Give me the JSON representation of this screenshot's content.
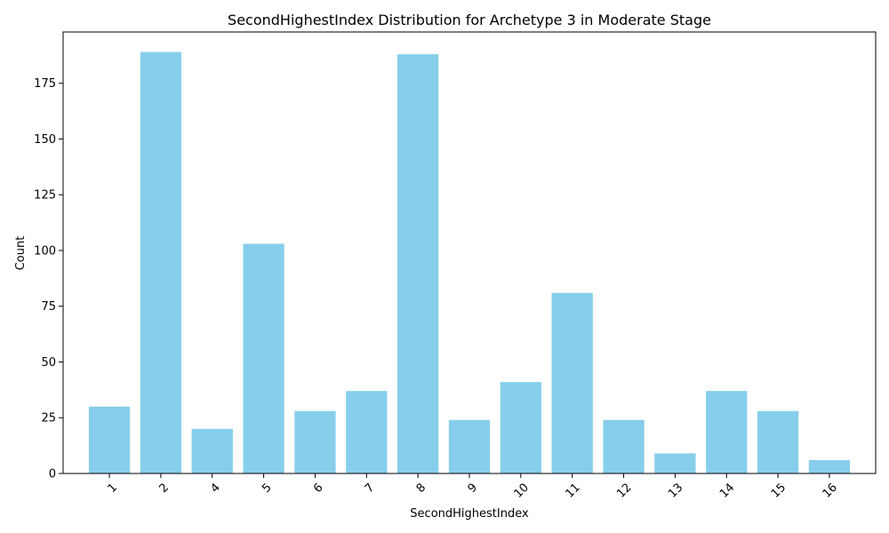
{
  "chart_data": {
    "type": "bar",
    "title": "SecondHighestIndex Distribution for Archetype 3 in Moderate Stage",
    "xlabel": "SecondHighestIndex",
    "ylabel": "Count",
    "categories": [
      "1",
      "2",
      "4",
      "5",
      "6",
      "7",
      "8",
      "9",
      "10",
      "11",
      "12",
      "13",
      "14",
      "15",
      "16"
    ],
    "values": [
      30,
      189,
      20,
      103,
      28,
      37,
      188,
      24,
      41,
      81,
      24,
      9,
      37,
      28,
      6
    ],
    "ylim": [
      0,
      198
    ],
    "yticks": [
      0,
      25,
      50,
      75,
      100,
      125,
      150,
      175
    ],
    "bar_color": "#87ceeb",
    "grid": false,
    "legend": "none",
    "xtick_rotation": -45
  }
}
